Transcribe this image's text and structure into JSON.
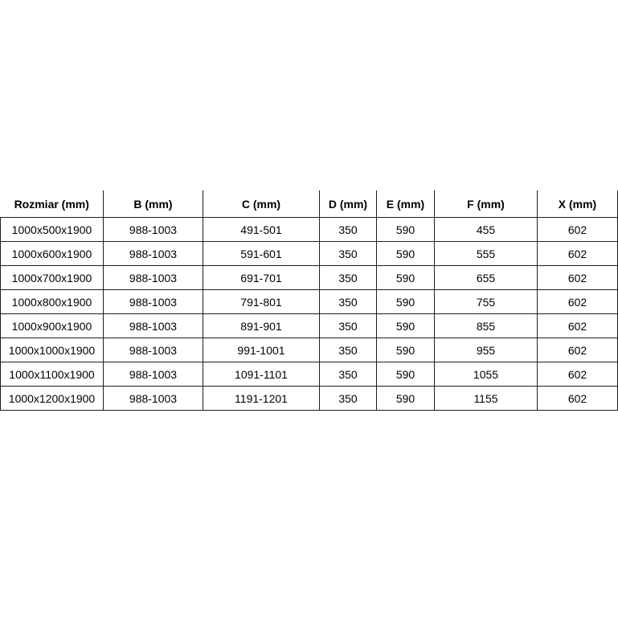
{
  "table": {
    "columns": [
      "Rozmiar (mm)",
      "B (mm)",
      "C (mm)",
      "D (mm)",
      "E (mm)",
      "F (mm)",
      "X (mm)"
    ],
    "rows": [
      [
        "1000x500x1900",
        "988-1003",
        "491-501",
        "350",
        "590",
        "455",
        "602"
      ],
      [
        "1000x600x1900",
        "988-1003",
        "591-601",
        "350",
        "590",
        "555",
        "602"
      ],
      [
        "1000x700x1900",
        "988-1003",
        "691-701",
        "350",
        "590",
        "655",
        "602"
      ],
      [
        "1000x800x1900",
        "988-1003",
        "791-801",
        "350",
        "590",
        "755",
        "602"
      ],
      [
        "1000x900x1900",
        "988-1003",
        "891-901",
        "350",
        "590",
        "855",
        "602"
      ],
      [
        "1000x1000x1900",
        "988-1003",
        "991-1001",
        "350",
        "590",
        "955",
        "602"
      ],
      [
        "1000x1100x1900",
        "988-1003",
        "1091-1101",
        "350",
        "590",
        "1055",
        "602"
      ],
      [
        "1000x1200x1900",
        "988-1003",
        "1191-1201",
        "350",
        "590",
        "1155",
        "602"
      ]
    ]
  },
  "colors": {
    "border": "#1f1f1f",
    "text": "#000000",
    "background": "#ffffff"
  }
}
